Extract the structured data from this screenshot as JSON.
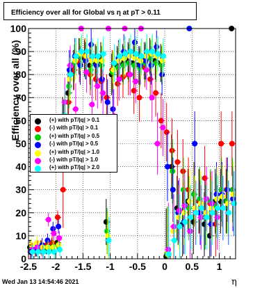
{
  "chart_data": {
    "type": "scatter",
    "title": "Efficiency over all for Global vs   η at pT > 0.11",
    "xlabel": "η",
    "ylabel": "Efficiency over all (%)",
    "xlim": [
      -2.5,
      1.3
    ],
    "ylim": [
      0,
      100
    ],
    "grid": true,
    "legend_position": "middle-left",
    "x_ticks": [
      "-2.5",
      "-2",
      "-1.5",
      "-1",
      "-0.5",
      "0",
      "0.5",
      "1"
    ],
    "y_ticks": [
      "0",
      "10",
      "20",
      "30",
      "40",
      "50",
      "60",
      "70",
      "80",
      "90",
      "100"
    ],
    "series": [
      {
        "name": "(+) with pT/|q| > 0.1",
        "color": "#000000",
        "x": [
          -2.45,
          -2.35,
          -2.25,
          -2.15,
          -2.05,
          -1.95,
          -1.85,
          -1.75,
          -1.65,
          -1.55,
          -1.45,
          -1.35,
          -1.25,
          -1.15,
          -1.05,
          -0.95,
          -0.85,
          -0.75,
          -0.65,
          -0.55,
          -0.45,
          -0.35,
          -0.25,
          -0.15,
          -0.05,
          0.05,
          0.15,
          0.25,
          0.35,
          0.45,
          0.55,
          0.65,
          0.75,
          0.85,
          0.95,
          1.05,
          1.15,
          1.25
        ],
        "y": [
          5,
          4,
          5,
          5,
          6,
          7,
          58,
          72,
          82,
          88,
          87,
          84,
          85,
          86,
          16,
          80,
          84,
          85,
          86,
          85,
          84,
          86,
          88,
          86,
          85,
          1,
          40,
          22,
          15,
          25,
          16,
          25,
          15,
          10,
          25,
          25,
          25,
          100
        ]
      },
      {
        "name": "(-) with pT/|q| > 0.1",
        "color": "#ff0000",
        "x": [
          -2.45,
          -2.35,
          -2.25,
          -2.15,
          -2.05,
          -1.95,
          -1.85,
          -1.75,
          -1.65,
          -1.55,
          -1.45,
          -1.35,
          -1.25,
          -1.15,
          -1.05,
          -0.95,
          -0.85,
          -0.75,
          -0.65,
          -0.55,
          -0.45,
          -0.35,
          -0.25,
          -0.15,
          -0.05,
          0.05,
          0.15,
          0.25,
          0.35,
          0.45,
          0.55,
          0.65,
          0.75,
          0.85,
          0.95,
          1.05,
          1.15,
          1.25
        ],
        "y": [
          3,
          4,
          5,
          6,
          7,
          18,
          30,
          68,
          82,
          85,
          88,
          80,
          78,
          77,
          70,
          82,
          76,
          79,
          80,
          73,
          70,
          83,
          78,
          72,
          60,
          55,
          47,
          42,
          38,
          30,
          28,
          25,
          35,
          24,
          15,
          50,
          30,
          50
        ]
      },
      {
        "name": "(+) with pT/|q| > 0.5",
        "color": "#00cc00",
        "x": [
          -2.45,
          -2.35,
          -2.25,
          -2.15,
          -2.05,
          -1.95,
          -1.85,
          -1.75,
          -1.65,
          -1.55,
          -1.45,
          -1.35,
          -1.25,
          -1.15,
          -1.05,
          -0.95,
          -0.85,
          -0.75,
          -0.65,
          -0.55,
          -0.45,
          -0.35,
          -0.25,
          -0.15,
          -0.05,
          0.05,
          0.15,
          0.25,
          0.35,
          0.45,
          0.55,
          0.65,
          0.75,
          0.85,
          0.95,
          1.05,
          1.15,
          1.25
        ],
        "y": [
          4,
          4,
          4,
          5,
          5,
          6,
          55,
          75,
          85,
          88,
          86,
          82,
          84,
          84,
          12,
          81,
          83,
          84,
          85,
          84,
          83,
          85,
          87,
          85,
          84,
          2,
          38,
          20,
          30,
          22,
          28,
          26,
          18,
          25,
          23,
          30,
          25,
          30
        ]
      },
      {
        "name": "(-) with pT/|q| > 0.5",
        "color": "#0000ff",
        "x": [
          -2.45,
          -2.35,
          -2.25,
          -2.15,
          -2.05,
          -1.95,
          -1.85,
          -1.75,
          -1.65,
          -1.55,
          -1.45,
          -1.35,
          -1.25,
          -1.15,
          -1.05,
          -0.95,
          -0.85,
          -0.75,
          -0.65,
          -0.55,
          -0.45,
          -0.35,
          -0.25,
          -0.15,
          -0.05,
          0.05,
          0.15,
          0.25,
          0.35,
          0.45,
          0.55,
          0.65,
          0.75,
          0.85,
          0.95,
          1.05,
          1.15,
          1.25
        ],
        "y": [
          3,
          4,
          6,
          8,
          13,
          14,
          55,
          82,
          88,
          84,
          86,
          93,
          84,
          78,
          68,
          65,
          87,
          90,
          88,
          94,
          84,
          86,
          84,
          92,
          80,
          40,
          30,
          20,
          16,
          100,
          50,
          20,
          20,
          15,
          28,
          28,
          30,
          26
        ]
      },
      {
        "name": "(+) with pT/|q| > 1.0",
        "color": "#ffff00",
        "x": [
          -2.45,
          -2.35,
          -2.25,
          -2.15,
          -2.05,
          -1.95,
          -1.85,
          -1.75,
          -1.65,
          -1.55,
          -1.45,
          -1.35,
          -1.25,
          -1.15,
          -1.05,
          -0.95,
          -0.85,
          -0.75,
          -0.65,
          -0.55,
          -0.45,
          -0.35,
          -0.25,
          -0.15,
          -0.05,
          0.05,
          0.15,
          0.25,
          0.35,
          0.45,
          0.55,
          0.65,
          0.75,
          0.85,
          0.95,
          1.05,
          1.15,
          1.25
        ],
        "y": [
          6,
          7,
          5,
          5,
          5,
          6,
          60,
          78,
          86,
          89,
          88,
          86,
          86,
          86,
          10,
          82,
          86,
          87,
          88,
          87,
          86,
          88,
          89,
          88,
          86,
          2,
          12,
          18,
          20,
          25,
          22,
          24,
          20,
          22,
          26,
          27,
          24,
          28
        ]
      },
      {
        "name": "(-) with pT/|q| > 1.0",
        "color": "#ff00ff",
        "x": [
          -2.45,
          -2.35,
          -2.25,
          -2.15,
          -2.05,
          -1.95,
          -1.85,
          -1.75,
          -1.65,
          -1.55,
          -1.45,
          -1.35,
          -1.25,
          -1.15,
          -1.05,
          -0.95,
          -0.85,
          -0.75,
          -0.65,
          -0.55,
          -0.45,
          -0.35,
          -0.25,
          -0.15,
          -0.05,
          0.05,
          0.15,
          0.25,
          0.35,
          0.45,
          0.55,
          0.65,
          0.75,
          0.85,
          0.95,
          1.05,
          1.15,
          1.25
        ],
        "y": [
          4,
          5,
          3,
          17,
          11,
          9,
          68,
          84,
          65,
          100,
          81,
          67,
          75,
          72,
          100,
          62,
          78,
          100,
          80,
          77,
          100,
          82,
          70,
          50,
          57,
          4,
          14,
          21,
          23,
          12,
          20,
          18,
          26,
          24,
          18,
          22,
          20,
          24
        ]
      },
      {
        "name": "(+) with pT/|q| > 2.0",
        "color": "#00ffff",
        "x": [
          -2.45,
          -2.35,
          -2.25,
          -2.15,
          -2.05,
          -1.95,
          -1.85,
          -1.75,
          -1.65,
          -1.55,
          -1.45,
          -1.35,
          -1.25,
          -1.15,
          -1.05,
          -0.95,
          -0.85,
          -0.75,
          -0.65,
          -0.55,
          -0.45,
          -0.35,
          -0.25,
          -0.15,
          -0.05,
          0.05,
          0.15,
          0.25,
          0.35,
          0.45,
          0.55,
          0.65,
          0.75,
          0.85,
          0.95,
          1.05,
          1.15,
          1.25
        ],
        "y": [
          3,
          3,
          3,
          3,
          3,
          4,
          62,
          80,
          88,
          90,
          90,
          88,
          88,
          89,
          8,
          85,
          88,
          89,
          90,
          89,
          88,
          90,
          90,
          89,
          88,
          2,
          8,
          14,
          16,
          18,
          20,
          22,
          18,
          20,
          22,
          22,
          20,
          24
        ]
      }
    ]
  },
  "legend": [
    {
      "label": "(+) with pT/|q| > 0.1",
      "color": "#000000"
    },
    {
      "label": "(-) with pT/|q| > 0.1",
      "color": "#ff0000"
    },
    {
      "label": "(+) with pT/|q| > 0.5",
      "color": "#00cc00"
    },
    {
      "label": "(-) with pT/|q| > 0.5",
      "color": "#0000ff"
    },
    {
      "label": "(+) with pT/|q| > 1.0",
      "color": "#ffff00"
    },
    {
      "label": "(-) with pT/|q| > 1.0",
      "color": "#ff00ff"
    },
    {
      "label": "(+) with pT/|q| > 2.0",
      "color": "#00ffff"
    }
  ],
  "footer": "Wed Jan 13 14:54:46 2021"
}
